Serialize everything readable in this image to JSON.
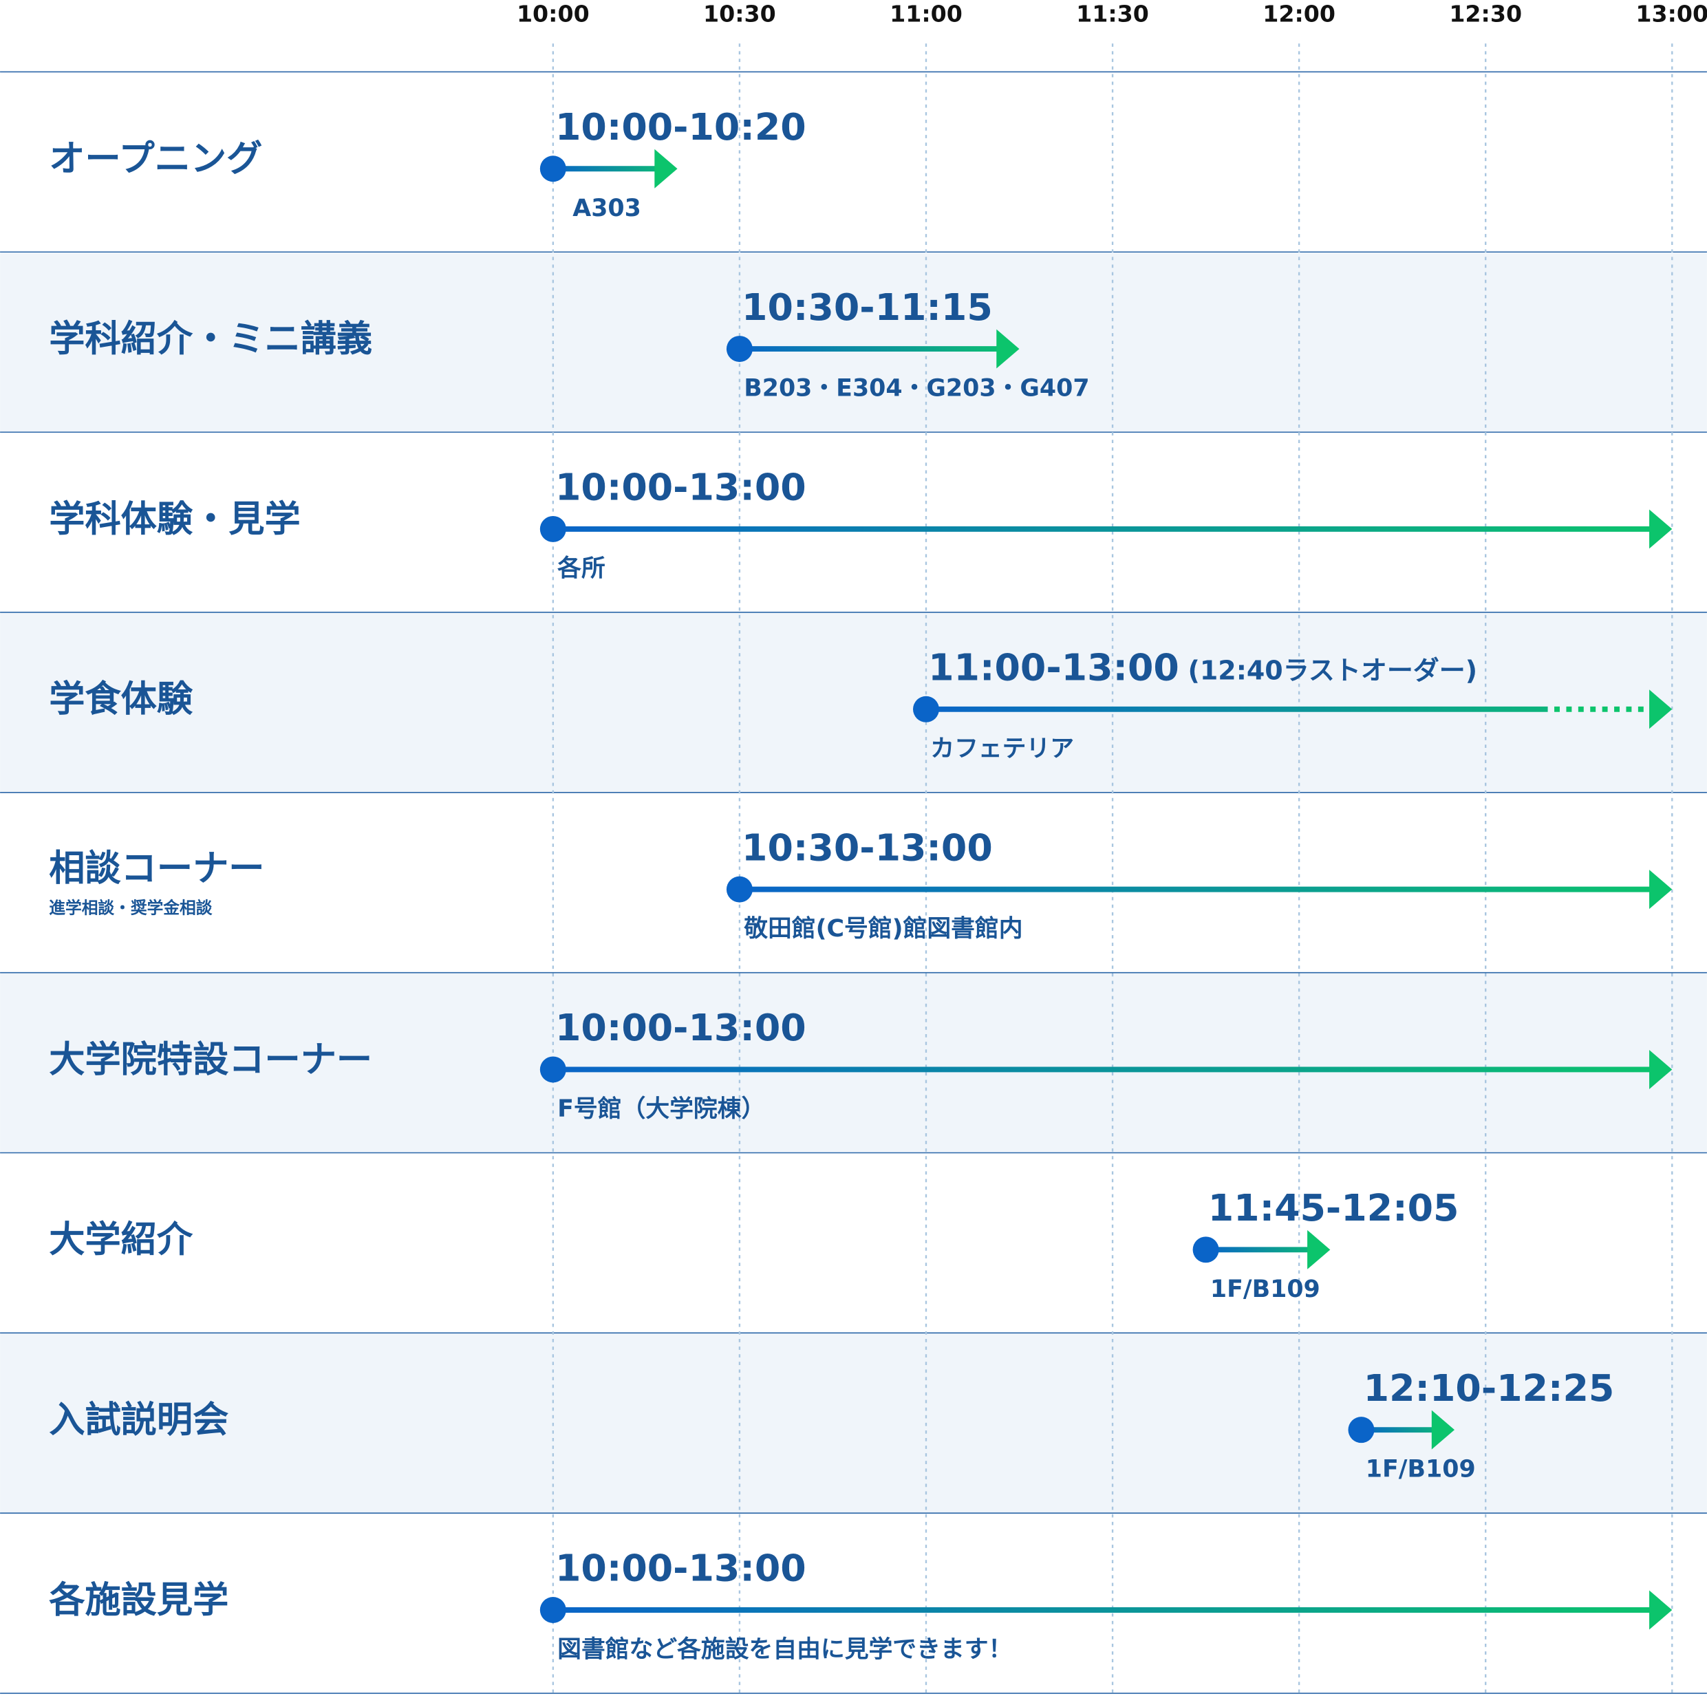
{
  "header": {
    "times": [
      "10:00",
      "10:30",
      "11:00",
      "11:30",
      "12:00",
      "12:30",
      "13:00"
    ]
  },
  "rows": [
    {
      "label": "オープニング",
      "time": "10:00-10:20",
      "place": "A303"
    },
    {
      "label": "学科紹介・ミニ講義",
      "time": "10:30-11:15",
      "place": "B203・E304・G203・G407"
    },
    {
      "label": "学科体験・見学",
      "time": "10:00-13:00",
      "place": "各所"
    },
    {
      "label": "学食体験",
      "time": "11:00-13:00",
      "note": "(12:40ラストオーダー)",
      "place": "カフェテリア"
    },
    {
      "label": "相談コーナー",
      "sublabel": "進学相談・奨学金相談",
      "time": "10:30-13:00",
      "place": "敬田館(C号館)館図書館内"
    },
    {
      "label": "大学院特設コーナー",
      "time": "10:00-13:00",
      "place": "F号館（大学院棟）"
    },
    {
      "label": "大学紹介",
      "time": "11:45-12:05",
      "place": "1F/B109"
    },
    {
      "label": "入試説明会",
      "time": "12:10-12:25",
      "place": "1F/B109"
    },
    {
      "label": "各施設見学",
      "time": "10:00-13:00",
      "place": "図書館など各施設を自由に見学できます！"
    }
  ]
}
